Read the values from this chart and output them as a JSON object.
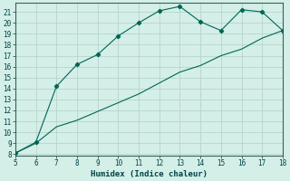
{
  "xlabel": "Humidex (Indice chaleur)",
  "bg_color": "#d4eee8",
  "grid_major_color": "#b8d4cc",
  "grid_minor_color": "#c8e4dc",
  "line_color": "#006655",
  "line1_x": [
    5,
    6,
    7,
    8,
    9,
    10,
    11,
    12,
    13,
    14,
    15,
    16,
    17,
    18
  ],
  "line1_y": [
    8.1,
    9.1,
    14.2,
    16.2,
    17.1,
    18.8,
    20.0,
    21.1,
    21.5,
    20.1,
    19.3,
    21.2,
    21.0,
    19.3
  ],
  "line2_x": [
    5,
    6,
    7,
    8,
    9,
    10,
    11,
    12,
    13,
    14,
    15,
    16,
    17,
    18
  ],
  "line2_y": [
    8.1,
    9.0,
    10.5,
    11.1,
    11.9,
    12.7,
    13.5,
    14.5,
    15.5,
    16.1,
    17.0,
    17.6,
    18.6,
    19.3
  ],
  "xlim": [
    5,
    18
  ],
  "ylim": [
    7.9,
    21.8
  ],
  "xticks": [
    5,
    6,
    7,
    8,
    9,
    10,
    11,
    12,
    13,
    14,
    15,
    16,
    17,
    18
  ],
  "yticks": [
    8,
    9,
    10,
    11,
    12,
    13,
    14,
    15,
    16,
    17,
    18,
    19,
    20,
    21
  ],
  "tick_fontsize": 5.5,
  "xlabel_fontsize": 6.5
}
